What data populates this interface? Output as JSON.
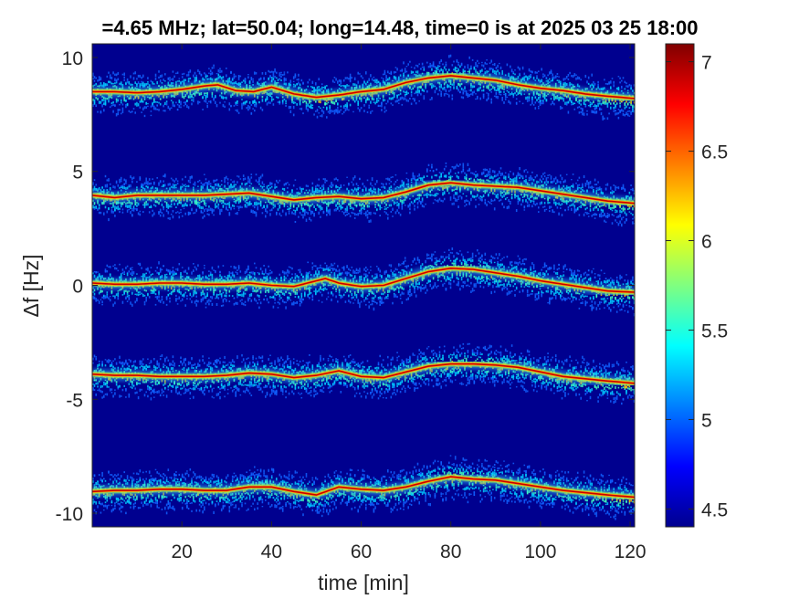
{
  "chart_data": {
    "type": "heatmap",
    "title": "=4.65 MHz;  lat=50.04; long=14.48, time=0 is at 2025 03 25 18:00",
    "xlabel": "time [min]",
    "ylabel": "Δf [Hz]",
    "xlim": [
      0,
      121
    ],
    "ylim": [
      -10.6,
      10.6
    ],
    "xticks": [
      20,
      40,
      60,
      80,
      100,
      120
    ],
    "yticks": [
      -10,
      -5,
      0,
      5,
      10
    ],
    "xtick_labels": [
      "20",
      "40",
      "60",
      "80",
      "100",
      "120"
    ],
    "ytick_labels": [
      "-10",
      "-5",
      "0",
      "5",
      "10"
    ],
    "background_color": "#00008f",
    "colorbar": {
      "range": [
        4.4,
        7.1
      ],
      "ticks": [
        4.5,
        5,
        5.5,
        6,
        6.5,
        7
      ],
      "tick_labels": [
        "4.5",
        "5",
        "5.5",
        "6",
        "6.5",
        "7"
      ],
      "colormap": "jet"
    },
    "series": [
      {
        "offset": 8.5,
        "time": [
          0,
          5,
          10,
          15,
          20,
          25,
          28,
          32,
          36,
          40,
          45,
          50,
          55,
          60,
          65,
          70,
          75,
          80,
          85,
          90,
          95,
          100,
          105,
          110,
          115,
          121
        ],
        "df": [
          8.5,
          8.5,
          8.45,
          8.5,
          8.6,
          8.75,
          8.8,
          8.55,
          8.5,
          8.7,
          8.4,
          8.25,
          8.35,
          8.5,
          8.6,
          8.9,
          9.1,
          9.2,
          9.1,
          9.0,
          8.8,
          8.65,
          8.55,
          8.4,
          8.3,
          8.2
        ]
      },
      {
        "offset": 4.0,
        "time": [
          0,
          5,
          10,
          15,
          20,
          25,
          30,
          35,
          40,
          45,
          50,
          55,
          60,
          65,
          70,
          75,
          80,
          85,
          90,
          95,
          100,
          105,
          110,
          115,
          121
        ],
        "df": [
          3.95,
          3.85,
          3.95,
          3.95,
          3.95,
          3.95,
          4.0,
          4.05,
          3.9,
          3.75,
          3.85,
          3.9,
          3.8,
          3.85,
          4.1,
          4.4,
          4.5,
          4.4,
          4.35,
          4.3,
          4.15,
          4.0,
          3.85,
          3.7,
          3.6
        ]
      },
      {
        "offset": 0.0,
        "time": [
          0,
          5,
          10,
          15,
          20,
          25,
          30,
          35,
          40,
          45,
          48,
          52,
          55,
          60,
          65,
          70,
          75,
          80,
          85,
          90,
          95,
          100,
          105,
          110,
          115,
          121
        ],
        "df": [
          0.1,
          0.05,
          0.05,
          0.1,
          0.1,
          0.05,
          0.05,
          0.1,
          0.0,
          -0.05,
          0.1,
          0.3,
          0.1,
          -0.05,
          0.0,
          0.3,
          0.6,
          0.75,
          0.7,
          0.55,
          0.4,
          0.2,
          0.05,
          -0.1,
          -0.25,
          -0.3
        ]
      },
      {
        "offset": -4.0,
        "time": [
          0,
          5,
          10,
          15,
          20,
          25,
          30,
          35,
          40,
          45,
          50,
          55,
          60,
          65,
          70,
          75,
          80,
          85,
          90,
          95,
          100,
          105,
          110,
          115,
          121
        ],
        "df": [
          -3.9,
          -3.95,
          -3.95,
          -4.0,
          -4.0,
          -4.0,
          -3.95,
          -3.85,
          -3.9,
          -4.05,
          -3.95,
          -3.75,
          -4.0,
          -4.05,
          -3.8,
          -3.55,
          -3.45,
          -3.45,
          -3.5,
          -3.6,
          -3.8,
          -4.0,
          -4.1,
          -4.2,
          -4.3
        ]
      },
      {
        "offset": -9.0,
        "time": [
          0,
          5,
          10,
          15,
          20,
          25,
          30,
          35,
          40,
          45,
          50,
          55,
          60,
          65,
          70,
          75,
          80,
          85,
          90,
          95,
          100,
          105,
          110,
          115,
          121
        ],
        "df": [
          -9.05,
          -9.0,
          -9.0,
          -8.95,
          -8.95,
          -9.0,
          -9.0,
          -8.85,
          -8.85,
          -9.05,
          -9.2,
          -8.85,
          -8.95,
          -9.0,
          -8.85,
          -8.6,
          -8.4,
          -8.5,
          -8.55,
          -8.7,
          -8.85,
          -9.0,
          -9.1,
          -9.2,
          -9.3
        ]
      }
    ]
  }
}
